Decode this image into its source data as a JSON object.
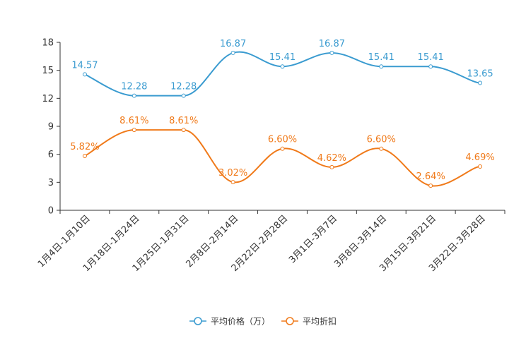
{
  "chart_data": {
    "type": "line",
    "title": "",
    "xlabel": "",
    "ylabel": "",
    "ylim": [
      0,
      18
    ],
    "yticks": [
      0,
      3,
      6,
      9,
      12,
      15,
      18
    ],
    "grid": false,
    "legend_position": "bottom-center",
    "categories": [
      "1月4日-1月10日",
      "1月18日-1月24日",
      "1月25日-1月31日",
      "2月8日-2月14日",
      "2月22日-2月28日",
      "3月1日-3月7日",
      "3月8日-3月14日",
      "3月15日-3月21日",
      "3月22日-3月28日"
    ],
    "series": [
      {
        "name": "平均价格（万）",
        "color": "#3a9bd0",
        "values": [
          14.57,
          12.28,
          12.28,
          16.87,
          15.41,
          16.87,
          15.41,
          15.41,
          13.65
        ],
        "labels": [
          "14.57",
          "12.28",
          "12.28",
          "16.87",
          "15.41",
          "16.87",
          "15.41",
          "15.41",
          "13.65"
        ]
      },
      {
        "name": "平均折扣",
        "color": "#f07a1a",
        "values": [
          5.82,
          8.61,
          8.61,
          3.02,
          6.6,
          4.62,
          6.6,
          2.64,
          4.69
        ],
        "labels": [
          "5.82%",
          "8.61%",
          "8.61%",
          "3.02%",
          "6.60%",
          "4.62%",
          "6.60%",
          "2.64%",
          "4.69%"
        ]
      }
    ]
  }
}
